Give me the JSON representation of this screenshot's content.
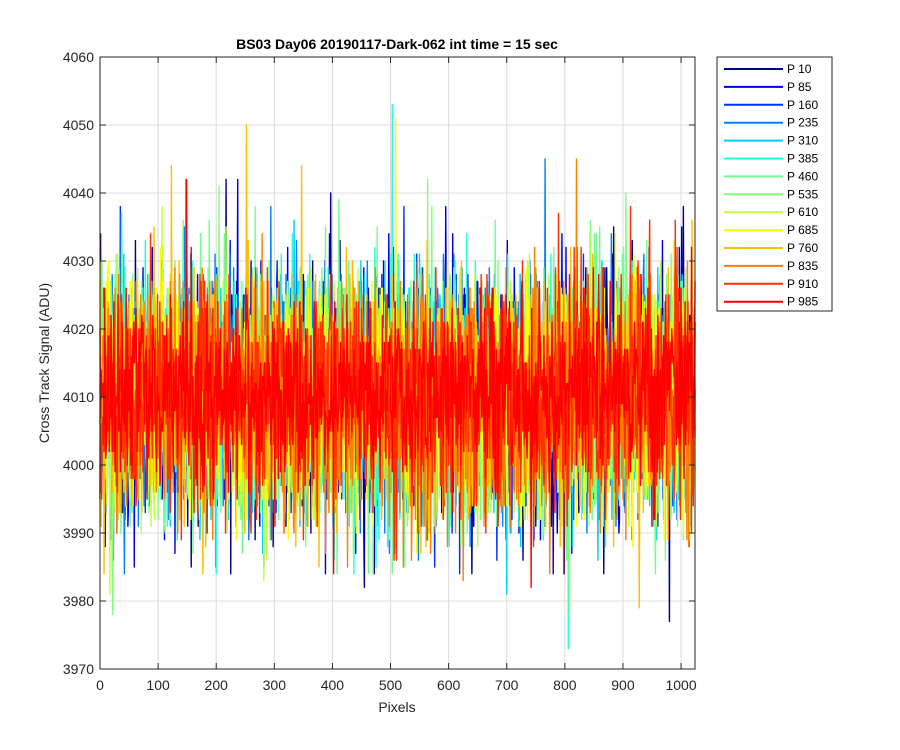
{
  "chart_data": {
    "type": "line",
    "title": "BS03 Day06 20190117-Dark-062 int time = 15 sec",
    "xlabel": "Pixels",
    "ylabel": "Cross Track Signal (ADU)",
    "xlim": [
      0,
      1024
    ],
    "ylim": [
      3970,
      4060
    ],
    "xticks": [
      "0",
      "100",
      "200",
      "300",
      "400",
      "500",
      "600",
      "700",
      "800",
      "900",
      "1000"
    ],
    "yticks": [
      "3970",
      "3980",
      "3990",
      "4000",
      "4010",
      "4020",
      "4030",
      "4040",
      "4050",
      "4060"
    ],
    "grid": true,
    "legend_position": "outside-top-right",
    "series": [
      {
        "name": "P 10",
        "color": "#00008F",
        "mean": 4010,
        "spread": 8.5,
        "peaks": [
          [
            1,
            4034
          ],
          [
            217,
            4042
          ],
          [
            397,
            4040
          ],
          [
            455,
            3982
          ],
          [
            980,
            3977
          ]
        ]
      },
      {
        "name": "P 85",
        "color": "#0000DF",
        "mean": 4010,
        "spread": 8.5,
        "peaks": [
          [
            129,
            3987
          ],
          [
            237,
            4042
          ],
          [
            488,
            4030
          ]
        ]
      },
      {
        "name": "P 160",
        "color": "#0030FF",
        "mean": 4010,
        "spread": 8.5,
        "peaks": [
          [
            305,
            4030
          ],
          [
            606,
            3990
          ]
        ]
      },
      {
        "name": "P 235",
        "color": "#0080FF",
        "mean": 4010,
        "spread": 8.5,
        "peaks": [
          [
            766,
            4045
          ],
          [
            637,
            3988
          ]
        ]
      },
      {
        "name": "P 310",
        "color": "#00CFFF",
        "mean": 4010,
        "spread": 8.5,
        "peaks": [
          [
            280,
            3987
          ],
          [
            700,
            3981
          ]
        ]
      },
      {
        "name": "P 385",
        "color": "#20FFDF",
        "mean": 4010,
        "spread": 8.5,
        "peaks": [
          [
            503,
            4053
          ],
          [
            806,
            3973
          ]
        ]
      },
      {
        "name": "P 460",
        "color": "#70FF8F",
        "mean": 4010,
        "spread": 8.5,
        "peaks": [
          [
            411,
            4039
          ],
          [
            860,
            4035
          ]
        ]
      },
      {
        "name": "P 535",
        "color": "#80FF80",
        "mean": 4010,
        "spread": 8.5,
        "peaks": [
          [
            22,
            3978
          ],
          [
            205,
            4041
          ],
          [
            564,
            4042
          ],
          [
            905,
            4040
          ]
        ]
      },
      {
        "name": "P 610",
        "color": "#BFFF40",
        "mean": 4010,
        "spread": 8.5,
        "peaks": [
          [
            17,
            3981
          ],
          [
            282,
            3983
          ],
          [
            808,
            3978
          ]
        ]
      },
      {
        "name": "P 685",
        "color": "#FFFF00",
        "mean": 4010,
        "spread": 8.5,
        "peaks": [
          [
            509,
            4051
          ],
          [
            598,
            4030
          ]
        ]
      },
      {
        "name": "P 760",
        "color": "#FFBF00",
        "mean": 4010,
        "spread": 8.5,
        "peaks": [
          [
            123,
            4044
          ],
          [
            252,
            4050
          ],
          [
            347,
            4044
          ],
          [
            928,
            3979
          ]
        ]
      },
      {
        "name": "P 835",
        "color": "#FF8000",
        "mean": 4010,
        "spread": 8.5,
        "peaks": [
          [
            820,
            4045
          ],
          [
            522,
            3985
          ],
          [
            625,
            3983
          ]
        ]
      },
      {
        "name": "P 910",
        "color": "#FF3000",
        "mean": 4010,
        "spread": 8.5,
        "peaks": [
          [
            148,
            4042
          ],
          [
            260,
            3990
          ]
        ]
      },
      {
        "name": "P 985",
        "color": "#FF0000",
        "mean": 4011,
        "spread": 7,
        "peaks": [
          [
            149,
            4042
          ],
          [
            402,
            3984
          ],
          [
            742,
            3982
          ],
          [
            1018,
            4032
          ]
        ]
      }
    ]
  }
}
